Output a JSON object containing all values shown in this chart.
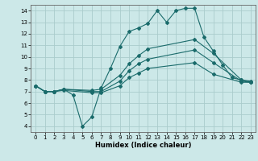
{
  "title": "",
  "xlabel": "Humidex (Indice chaleur)",
  "bg_color": "#cce8e8",
  "grid_color": "#aacccc",
  "line_color": "#1a6b6b",
  "xlim": [
    -0.5,
    23.5
  ],
  "ylim": [
    3.5,
    14.5
  ],
  "xticks": [
    0,
    1,
    2,
    3,
    4,
    5,
    6,
    7,
    8,
    9,
    10,
    11,
    12,
    13,
    14,
    15,
    16,
    17,
    18,
    19,
    20,
    21,
    22,
    23
  ],
  "yticks": [
    4,
    5,
    6,
    7,
    8,
    9,
    10,
    11,
    12,
    13,
    14
  ],
  "lines": [
    {
      "x": [
        0,
        1,
        2,
        3,
        4,
        5,
        6,
        7,
        8,
        9,
        10,
        11,
        12,
        13,
        14,
        15,
        16,
        17,
        18,
        19,
        20,
        21,
        22,
        23
      ],
      "y": [
        7.5,
        7.0,
        7.0,
        7.2,
        6.7,
        4.0,
        4.8,
        7.3,
        9.0,
        10.9,
        12.2,
        12.5,
        12.9,
        14.0,
        13.0,
        14.0,
        14.2,
        14.2,
        11.7,
        10.5,
        9.3,
        8.2,
        8.0,
        7.9
      ]
    },
    {
      "x": [
        0,
        1,
        2,
        3,
        6,
        7,
        9,
        10,
        11,
        12,
        17,
        19,
        22,
        23
      ],
      "y": [
        7.5,
        7.0,
        7.0,
        7.2,
        7.1,
        7.2,
        8.4,
        9.4,
        10.1,
        10.7,
        11.5,
        10.3,
        8.0,
        7.8
      ]
    },
    {
      "x": [
        0,
        1,
        2,
        3,
        6,
        7,
        9,
        10,
        11,
        12,
        17,
        19,
        22,
        23
      ],
      "y": [
        7.5,
        7.0,
        7.0,
        7.2,
        7.0,
        7.0,
        7.9,
        8.8,
        9.4,
        9.8,
        10.6,
        9.5,
        7.9,
        7.8
      ]
    },
    {
      "x": [
        0,
        1,
        2,
        3,
        6,
        7,
        9,
        10,
        11,
        12,
        17,
        19,
        22,
        23
      ],
      "y": [
        7.5,
        7.0,
        7.0,
        7.1,
        6.9,
        6.9,
        7.5,
        8.2,
        8.6,
        9.0,
        9.5,
        8.5,
        7.8,
        7.8
      ]
    }
  ]
}
